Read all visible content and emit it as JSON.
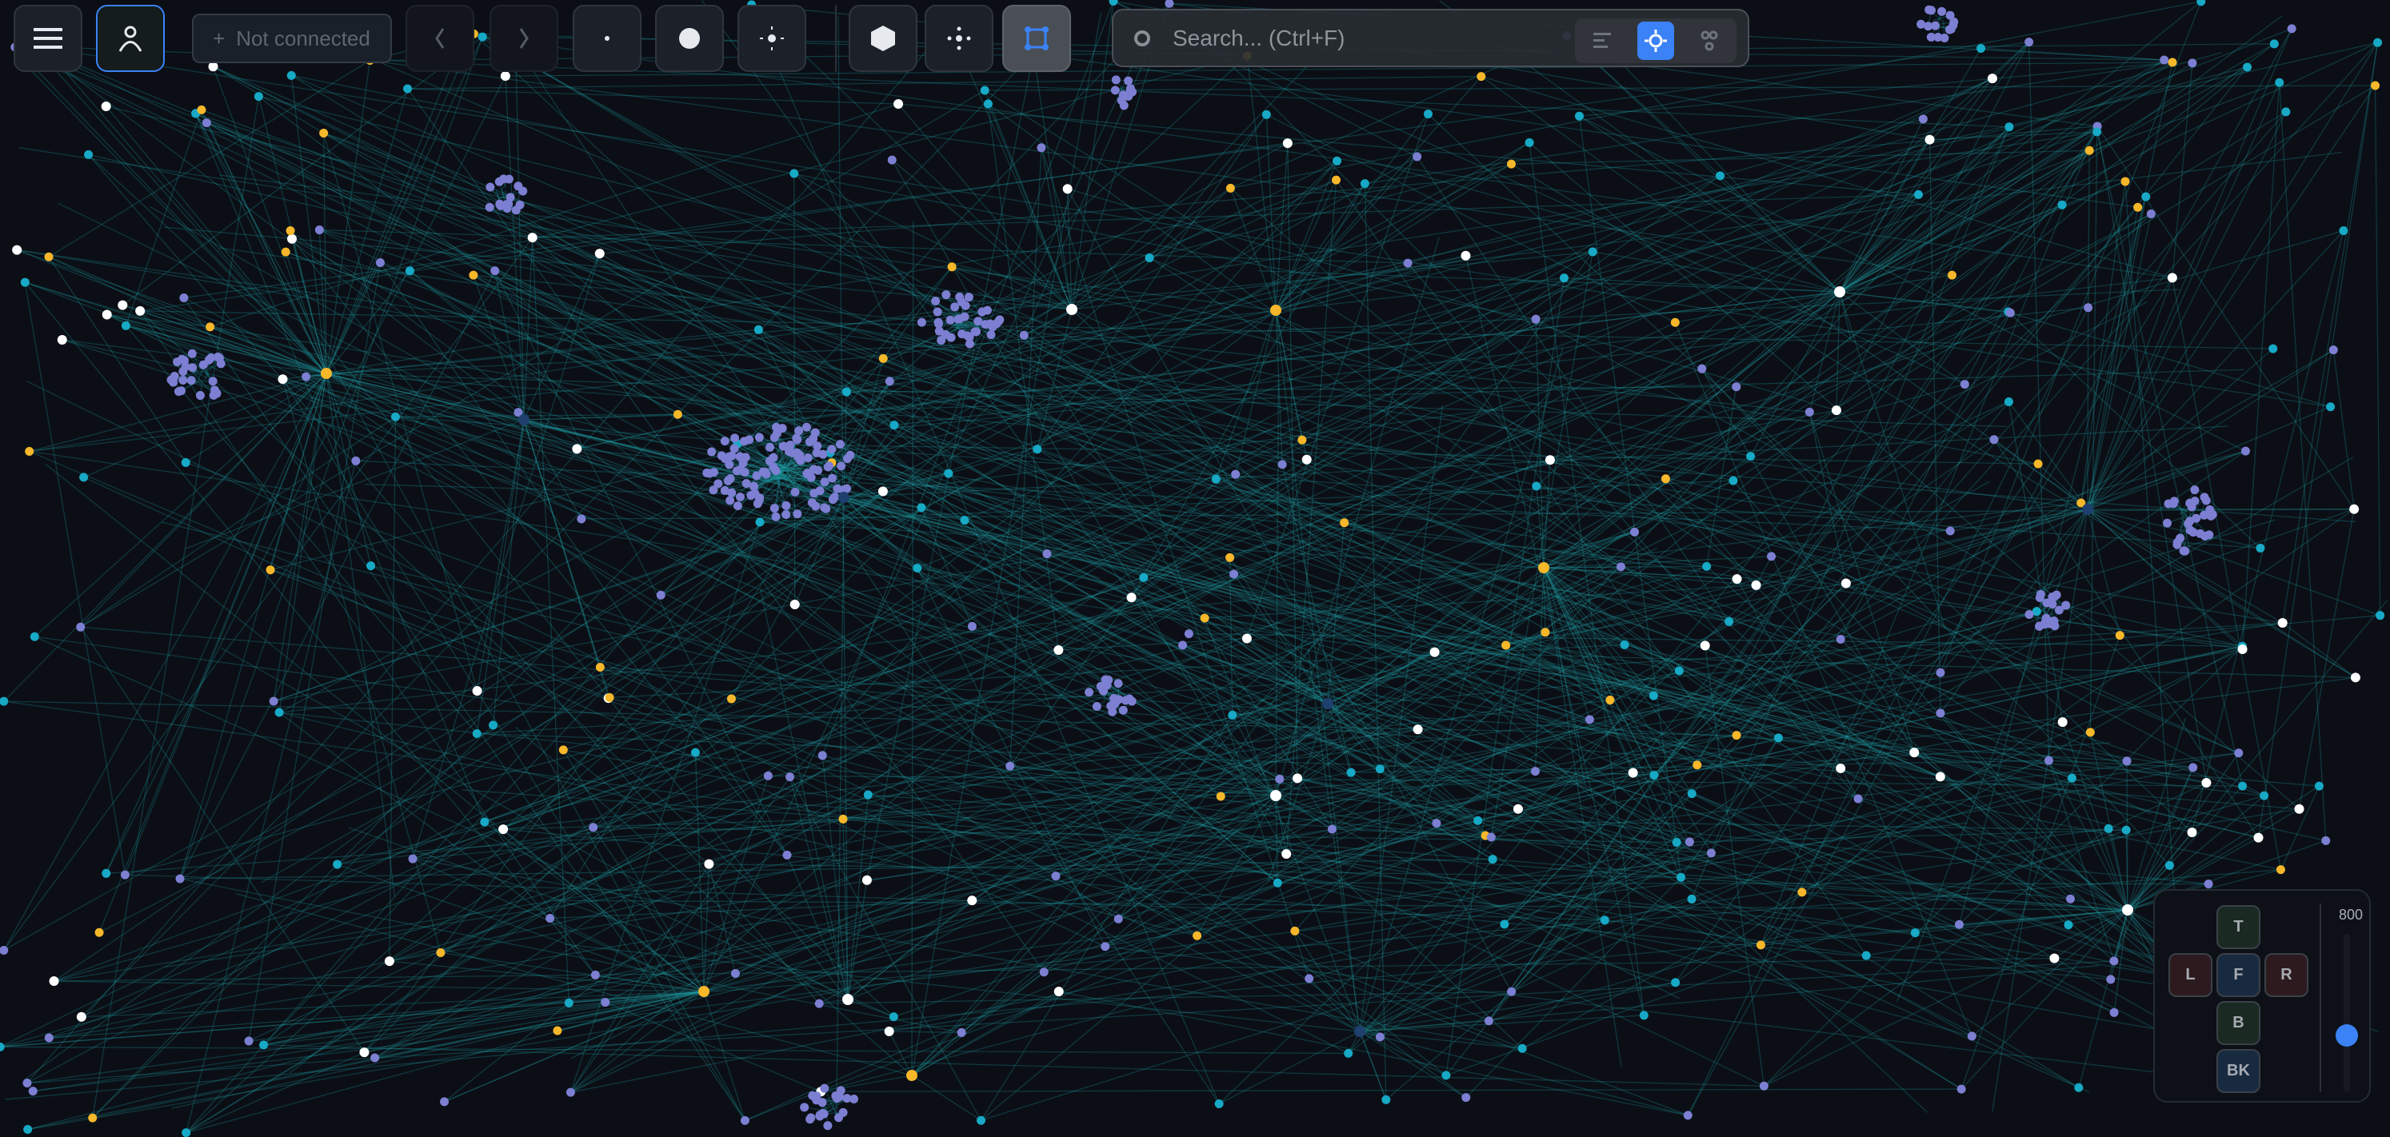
{
  "toolbar": {
    "menu_icon": "hamburger-icon",
    "user_icon": "person-icon",
    "connection": {
      "plus": "+",
      "label": "Not connected"
    },
    "back_icon": "chevron-left-icon",
    "forward_icon": "chevron-right-icon",
    "node_size_buttons": [
      "small-dot-icon",
      "large-dot-icon",
      "dot-rays-icon"
    ],
    "layout_buttons": [
      "hexagon-icon",
      "move-icon",
      "select-box-icon"
    ],
    "active_layout_button": "select-box-icon"
  },
  "search": {
    "placeholder": "Search... (Ctrl+F)",
    "value": "",
    "modes": [
      "list-icon",
      "target-icon",
      "graph-icon"
    ],
    "active_mode": "target-icon"
  },
  "view_panel": {
    "keys": {
      "top": "T",
      "left": "L",
      "front": "F",
      "right": "R",
      "bottom": "B",
      "back": "BK"
    },
    "zoom_value": "800",
    "zoom_slider_fraction": 0.36
  },
  "graph": {
    "node_colors": {
      "purple": "#7d7fd2",
      "cyan": "#17a9c6",
      "yellow": "#f6b72a",
      "white": "#ffffff",
      "hub": "#1f3f6e"
    },
    "edge_color": "#1fa3a8",
    "accent": "#3b82f6"
  }
}
